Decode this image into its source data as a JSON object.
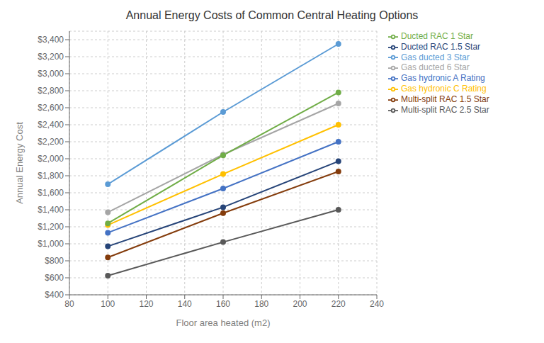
{
  "chart_data": {
    "type": "line",
    "title": "Annual Energy Costs of Common Central Heating Options",
    "xlabel": "Floor area heated (m2)",
    "ylabel": "Annual Energy Cost",
    "x": [
      100,
      160,
      220
    ],
    "series": [
      {
        "name": "Gas ducted 3 Star",
        "color": "#5B9BD5",
        "values": [
          1700,
          2550,
          3350
        ],
        "marker": "circle"
      },
      {
        "name": "Gas ducted 6 Star",
        "color": "#A5A5A5",
        "values": [
          1370,
          2050,
          2650
        ],
        "marker": "circle"
      },
      {
        "name": "Gas hydronic C Rating",
        "color": "#FFC000",
        "values": [
          1220,
          1820,
          2400
        ],
        "marker": "circle"
      },
      {
        "name": "Gas hydronic A Rating",
        "color": "#4472C4",
        "values": [
          1130,
          1650,
          2200
        ],
        "marker": "circle"
      },
      {
        "name": "Ducted RAC 1 Star",
        "color": "#70AD47",
        "values": [
          1240,
          2040,
          2780
        ],
        "marker": "circle"
      },
      {
        "name": "Ducted RAC 1.5 Star",
        "color": "#264478",
        "values": [
          970,
          1430,
          1970
        ],
        "marker": "circle"
      },
      {
        "name": "Multi-split RAC 1.5 Star",
        "color": "#843C0C",
        "values": [
          840,
          1360,
          1850
        ],
        "marker": "circle"
      },
      {
        "name": "Multi-split RAC 2.5 Star",
        "color": "#595959",
        "values": [
          625,
          1020,
          1400
        ],
        "marker": "circle"
      }
    ],
    "xlim": [
      80,
      240
    ],
    "ylim": [
      400,
      3500
    ],
    "xticks": [
      80,
      100,
      120,
      140,
      160,
      180,
      200,
      220,
      240
    ],
    "yticks": [
      {
        "value": 400,
        "label": "$400"
      },
      {
        "value": 600,
        "label": "$600"
      },
      {
        "value": 800,
        "label": "$800"
      },
      {
        "value": 1000,
        "label": "$1,000"
      },
      {
        "value": 1200,
        "label": "$1,200"
      },
      {
        "value": 1400,
        "label": "$1,400"
      },
      {
        "value": 1600,
        "label": "$1,600"
      },
      {
        "value": 1800,
        "label": "$1,800"
      },
      {
        "value": 2000,
        "label": "$2,000"
      },
      {
        "value": 2200,
        "label": "$2,200"
      },
      {
        "value": 2400,
        "label": "$2,400"
      },
      {
        "value": 2600,
        "label": "$2,600"
      },
      {
        "value": 2800,
        "label": "$2,800"
      },
      {
        "value": 3000,
        "label": "$3,000"
      },
      {
        "value": 3200,
        "label": "$3,200"
      },
      {
        "value": 3400,
        "label": "$3,400"
      }
    ],
    "grid": true,
    "legend": "right"
  }
}
